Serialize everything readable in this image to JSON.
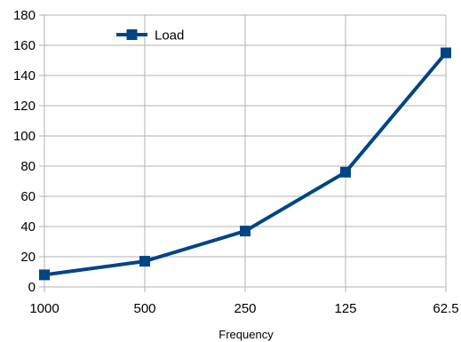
{
  "chart_data": {
    "type": "line",
    "categories": [
      "1000",
      "500",
      "250",
      "125",
      "62.5"
    ],
    "series": [
      {
        "name": "Load",
        "values": [
          8,
          17,
          37,
          76,
          155
        ],
        "color": "#004586",
        "marker": "square"
      }
    ],
    "xlabel": "Frequency",
    "ylabel": "",
    "ylim": [
      0,
      180
    ],
    "yticks": [
      "0",
      "20",
      "40",
      "60",
      "80",
      "100",
      "120",
      "140",
      "160",
      "180"
    ],
    "grid": true,
    "legend": "top-left"
  }
}
